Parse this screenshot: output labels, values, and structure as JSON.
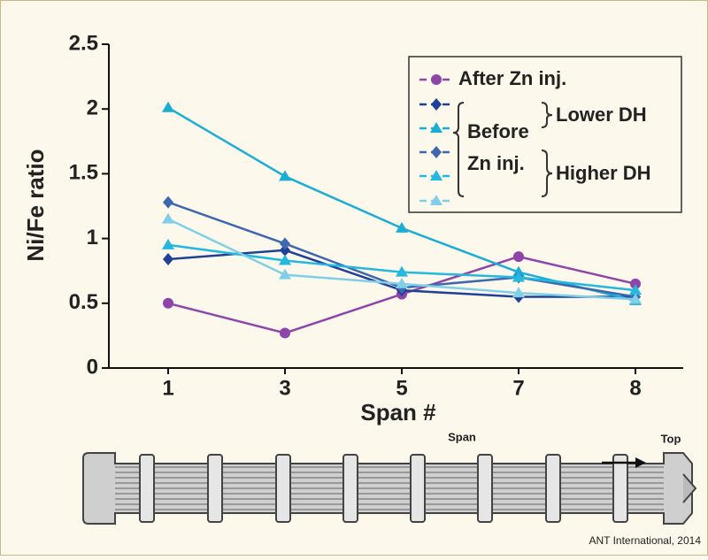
{
  "chart_data": {
    "type": "line",
    "categories": [
      "1",
      "3",
      "5",
      "7",
      "8"
    ],
    "x_label": "Span #",
    "y_label": "Ni/Fe ratio",
    "ylim": [
      0,
      2.5
    ],
    "yticks": [
      0,
      0.5,
      1,
      1.5,
      2,
      2.5
    ],
    "series": [
      {
        "name": "After Zn inj.",
        "color": "#8e44a8",
        "marker": "circle",
        "values": [
          0.5,
          0.27,
          0.57,
          0.86,
          0.65
        ]
      },
      {
        "color": "#1f3f99",
        "marker": "diamond",
        "values": [
          0.84,
          0.91,
          0.6,
          0.55,
          0.55
        ]
      },
      {
        "color": "#1aaed6",
        "marker": "triangle",
        "values": [
          2.01,
          1.48,
          1.08,
          0.74,
          0.52
        ]
      },
      {
        "color": "#3d68b0",
        "marker": "diamond",
        "values": [
          1.28,
          0.96,
          0.62,
          0.7,
          0.55
        ]
      },
      {
        "color": "#22b8e0",
        "marker": "triangle",
        "values": [
          0.95,
          0.83,
          0.74,
          0.7,
          0.6
        ]
      },
      {
        "color": "#80cfe8",
        "marker": "triangle",
        "values": [
          1.15,
          0.72,
          0.65,
          0.58,
          0.53
        ]
      }
    ],
    "legend_notes": [
      "Before",
      "Zn inj.",
      "Lower DH",
      "Higher DH"
    ],
    "diagram_labels": [
      "Span",
      "Top"
    ],
    "credit": "ANT International, 2014"
  }
}
